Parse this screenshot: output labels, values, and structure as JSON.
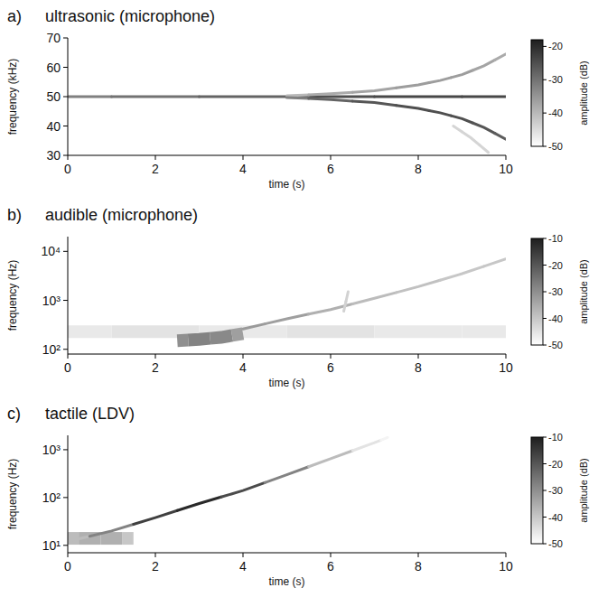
{
  "chart_data": [
    {
      "type": "spectrogram",
      "panel_label": "a)",
      "title": "ultrasonic (microphone)",
      "x_label": "time (s)",
      "y_label": "frequency (kHz)",
      "xlim": [
        0,
        10
      ],
      "xticks": [
        0,
        2,
        4,
        6,
        8,
        10
      ],
      "ylim": [
        30,
        70
      ],
      "yticks": [
        30,
        40,
        50,
        60,
        70
      ],
      "colorbar": {
        "label": "amplitude (dB)",
        "range": [
          -50,
          -18
        ],
        "ticks": [
          -20,
          -30,
          -40,
          -50
        ]
      },
      "series": [
        {
          "type": "line",
          "x": [
            0,
            2,
            4,
            6,
            8,
            10
          ],
          "values": [
            50,
            50,
            50,
            50,
            50,
            50
          ],
          "amplitude": [
            -32,
            -30,
            -28,
            -25,
            -24,
            -24
          ]
        },
        {
          "type": "line",
          "x": [
            5,
            6,
            7,
            8,
            8.5,
            9,
            9.5,
            10
          ],
          "values": [
            50.3,
            51,
            52,
            54,
            55.5,
            57.5,
            60.5,
            64.5
          ],
          "amplitude": [
            -40,
            -38,
            -37,
            -36,
            -36,
            -36,
            -37,
            -38
          ]
        },
        {
          "type": "line",
          "x": [
            5,
            6,
            7,
            8,
            8.5,
            9,
            9.5,
            10
          ],
          "values": [
            49.7,
            49,
            48,
            46,
            44.5,
            42.5,
            39.5,
            35.5
          ],
          "amplitude": [
            -32,
            -28,
            -26,
            -25,
            -25,
            -25,
            -26,
            -27
          ]
        },
        {
          "type": "line",
          "x": [
            8.8,
            9.2,
            9.6
          ],
          "values": [
            40,
            36,
            31
          ],
          "amplitude": [
            -44,
            -44,
            -44
          ]
        }
      ]
    },
    {
      "type": "spectrogram",
      "panel_label": "b)",
      "title": "audible (microphone)",
      "x_label": "time (s)",
      "y_label": "frequency (Hz)",
      "log": "y",
      "xlim": [
        0,
        10
      ],
      "xticks": [
        0,
        2,
        4,
        6,
        8,
        10
      ],
      "ylim": [
        80,
        20000
      ],
      "yticks": [
        {
          "value": 100,
          "label": "10²"
        },
        {
          "value": 1000,
          "label": "10³"
        },
        {
          "value": 10000,
          "label": "10⁴"
        }
      ],
      "colorbar": {
        "label": "amplitude (dB)",
        "range": [
          -50,
          -10
        ],
        "ticks": [
          -10,
          -20,
          -30,
          -40,
          -50
        ]
      },
      "series": [
        {
          "type": "band",
          "x": [
            0,
            2,
            4,
            6,
            8,
            10
          ],
          "values": [
            230,
            230,
            230,
            230,
            230,
            230
          ],
          "amplitude": [
            -46,
            -45,
            -46,
            -45,
            -46,
            -46
          ]
        },
        {
          "type": "band",
          "x": [
            2.5,
            3,
            3.5,
            4
          ],
          "values": [
            150,
            160,
            175,
            210
          ],
          "amplitude": [
            -30,
            -28,
            -29,
            -33
          ]
        },
        {
          "type": "line",
          "x": [
            4,
            5,
            6,
            7,
            8,
            9,
            10
          ],
          "values": [
            260,
            420,
            650,
            1100,
            1900,
            3500,
            7000
          ],
          "amplitude": [
            -32,
            -33,
            -36,
            -38,
            -39,
            -40,
            -40
          ]
        },
        {
          "type": "line",
          "x": [
            6.3,
            6.4
          ],
          "values": [
            600,
            1500
          ],
          "amplitude": [
            -42,
            -42
          ]
        }
      ]
    },
    {
      "type": "spectrogram",
      "panel_label": "c)",
      "title": "tactile (LDV)",
      "x_label": "time (s)",
      "y_label": "frequency (Hz)",
      "log": "y",
      "xlim": [
        0,
        10
      ],
      "xticks": [
        0,
        2,
        4,
        6,
        8,
        10
      ],
      "ylim": [
        7,
        2000
      ],
      "yticks": [
        {
          "value": 10,
          "label": "10¹"
        },
        {
          "value": 100,
          "label": "10²"
        },
        {
          "value": 1000,
          "label": "10³"
        }
      ],
      "colorbar": {
        "label": "amplitude (dB)",
        "range": [
          -50,
          -10
        ],
        "ticks": [
          -10,
          -20,
          -30,
          -40,
          -50
        ]
      },
      "series": [
        {
          "type": "band",
          "x": [
            0,
            0.5,
            1,
            1.5
          ],
          "values": [
            14,
            14,
            14,
            14
          ],
          "amplitude": [
            -38,
            -36,
            -36,
            -40
          ]
        },
        {
          "type": "line",
          "x": [
            0,
            1,
            2,
            3,
            4,
            5,
            6,
            7,
            7.3
          ],
          "values": [
            12,
            20,
            38,
            75,
            140,
            300,
            650,
            1400,
            1800
          ],
          "amplitude": [
            -38,
            -28,
            -16,
            -12,
            -18,
            -28,
            -38,
            -45,
            -48
          ]
        }
      ]
    }
  ]
}
